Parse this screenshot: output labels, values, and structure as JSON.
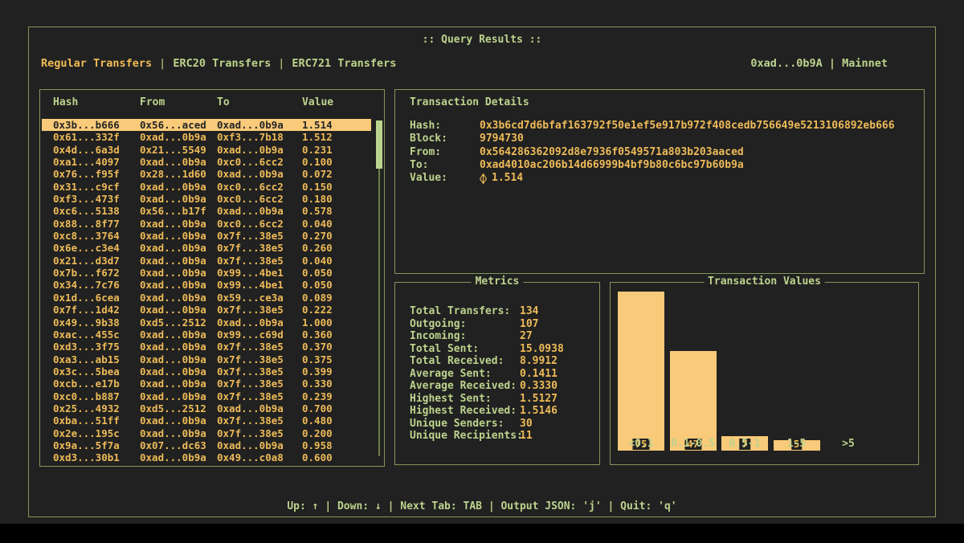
{
  "window": {
    "title": ":: Query Results ::",
    "account_network": "0xad...0b9A | Mainnet",
    "status_bar": "Up: ↑ | Down: ↓ | Next Tab: TAB | Output JSON: 'j' | Quit: 'q'"
  },
  "tabs": {
    "separator": "|",
    "items": [
      {
        "label": "Regular Transfers",
        "active": true
      },
      {
        "label": "ERC20 Transfers",
        "active": false
      },
      {
        "label": "ERC721 Transfers",
        "active": false
      }
    ]
  },
  "table": {
    "columns": [
      "Hash",
      "From",
      "To",
      "Value"
    ],
    "selected_index": 0,
    "rows": [
      [
        "0x3b...b666",
        "0x56...aced",
        "0xad...0b9a",
        "1.514"
      ],
      [
        "0x61...332f",
        "0xad...0b9a",
        "0xf3...7b18",
        "1.512"
      ],
      [
        "0x4d...6a3d",
        "0x21...5549",
        "0xad...0b9a",
        "0.231"
      ],
      [
        "0xa1...4097",
        "0xad...0b9a",
        "0xc0...6cc2",
        "0.100"
      ],
      [
        "0x76...f95f",
        "0x28...1d60",
        "0xad...0b9a",
        "0.072"
      ],
      [
        "0x31...c9cf",
        "0xad...0b9a",
        "0xc0...6cc2",
        "0.150"
      ],
      [
        "0xf3...473f",
        "0xad...0b9a",
        "0xc0...6cc2",
        "0.180"
      ],
      [
        "0xc6...5138",
        "0x56...b17f",
        "0xad...0b9a",
        "0.578"
      ],
      [
        "0x88...8f77",
        "0xad...0b9a",
        "0xc0...6cc2",
        "0.040"
      ],
      [
        "0xc8...3764",
        "0xad...0b9a",
        "0x7f...38e5",
        "0.270"
      ],
      [
        "0x6e...c3e4",
        "0xad...0b9a",
        "0x7f...38e5",
        "0.260"
      ],
      [
        "0x21...d3d7",
        "0xad...0b9a",
        "0x7f...38e5",
        "0.040"
      ],
      [
        "0x7b...f672",
        "0xad...0b9a",
        "0x99...4be1",
        "0.050"
      ],
      [
        "0x34...7c76",
        "0xad...0b9a",
        "0x99...4be1",
        "0.050"
      ],
      [
        "0x1d...6cea",
        "0xad...0b9a",
        "0x59...ce3a",
        "0.089"
      ],
      [
        "0x7f...1d42",
        "0xad...0b9a",
        "0x7f...38e5",
        "0.222"
      ],
      [
        "0x49...9b38",
        "0xd5...2512",
        "0xad...0b9a",
        "1.000"
      ],
      [
        "0xac...455c",
        "0xad...0b9a",
        "0x99...c69d",
        "0.360"
      ],
      [
        "0xd3...3f75",
        "0xad...0b9a",
        "0x7f...38e5",
        "0.370"
      ],
      [
        "0xa3...ab15",
        "0xad...0b9a",
        "0x7f...38e5",
        "0.375"
      ],
      [
        "0x3c...5bea",
        "0xad...0b9a",
        "0x7f...38e5",
        "0.399"
      ],
      [
        "0xcb...e17b",
        "0xad...0b9a",
        "0x7f...38e5",
        "0.330"
      ],
      [
        "0xc0...b887",
        "0xad...0b9a",
        "0x7f...38e5",
        "0.239"
      ],
      [
        "0x25...4932",
        "0xd5...2512",
        "0xad...0b9a",
        "0.700"
      ],
      [
        "0xba...51ff",
        "0xad...0b9a",
        "0x7f...38e5",
        "0.480"
      ],
      [
        "0x2e...195c",
        "0xad...0b9a",
        "0x7f...38e5",
        "0.200"
      ],
      [
        "0x9a...5f7a",
        "0x07...dc63",
        "0xad...0b9a",
        "0.958"
      ],
      [
        "0xd3...30b1",
        "0xad...0b9a",
        "0x49...c0a8",
        "0.600"
      ]
    ]
  },
  "details": {
    "title": "Transaction Details",
    "fields": [
      {
        "label": "Hash:",
        "value": "0x3b6cd7d6bfaf163792f50e1ef5e917b972f408cedb756649e5213106892eb666"
      },
      {
        "label": "Block:",
        "value": "9794730"
      },
      {
        "label": "From:",
        "value": "0x564286362092d8e7936f0549571a803b203aaced"
      },
      {
        "label": "To:",
        "value": "0xad4010ac206b14d66999b4bf9b80c6bc97b60b9a"
      },
      {
        "label": "Value:",
        "value": "1.514",
        "icon": "eth-diamond-icon"
      }
    ]
  },
  "metrics": {
    "title": "Metrics",
    "items": [
      {
        "label": "Total Transfers:",
        "value": "134"
      },
      {
        "label": "Outgoing:",
        "value": "107"
      },
      {
        "label": "Incoming:",
        "value": "27"
      },
      {
        "label": "Total Sent:",
        "value": "15.0938"
      },
      {
        "label": "Total Received:",
        "value": "8.9912"
      },
      {
        "label": "Average Sent:",
        "value": "0.1411"
      },
      {
        "label": "Average Received:",
        "value": "0.3330"
      },
      {
        "label": "Highest Sent:",
        "value": "1.5127"
      },
      {
        "label": "Highest Received:",
        "value": "1.5146"
      },
      {
        "label": "Unique Senders:",
        "value": "30"
      },
      {
        "label": "Unique Recipients:",
        "value": "11"
      }
    ]
  },
  "chart_data": {
    "type": "bar",
    "title": "Transaction Values",
    "categories": [
      "<0.1",
      "0.1-0.5",
      "0.5-1",
      "1-5",
      ">5"
    ],
    "values": [
      75,
      47,
      7,
      5,
      0
    ],
    "xlabel": "",
    "ylabel": "",
    "ylim": [
      0,
      79
    ],
    "grid": false,
    "legend": "none",
    "value_labels": true,
    "bar_color": "#f9ca79",
    "axis_label_color": "#bdd38d"
  },
  "colors": {
    "background": "#212121",
    "border_green": "#84955a",
    "text_green": "#bdd38d",
    "text_orange": "#eebb58",
    "selection_bg": "#f9ca79",
    "selection_fg": "#252525",
    "scrollbar_thumb": "#bcd48d"
  }
}
